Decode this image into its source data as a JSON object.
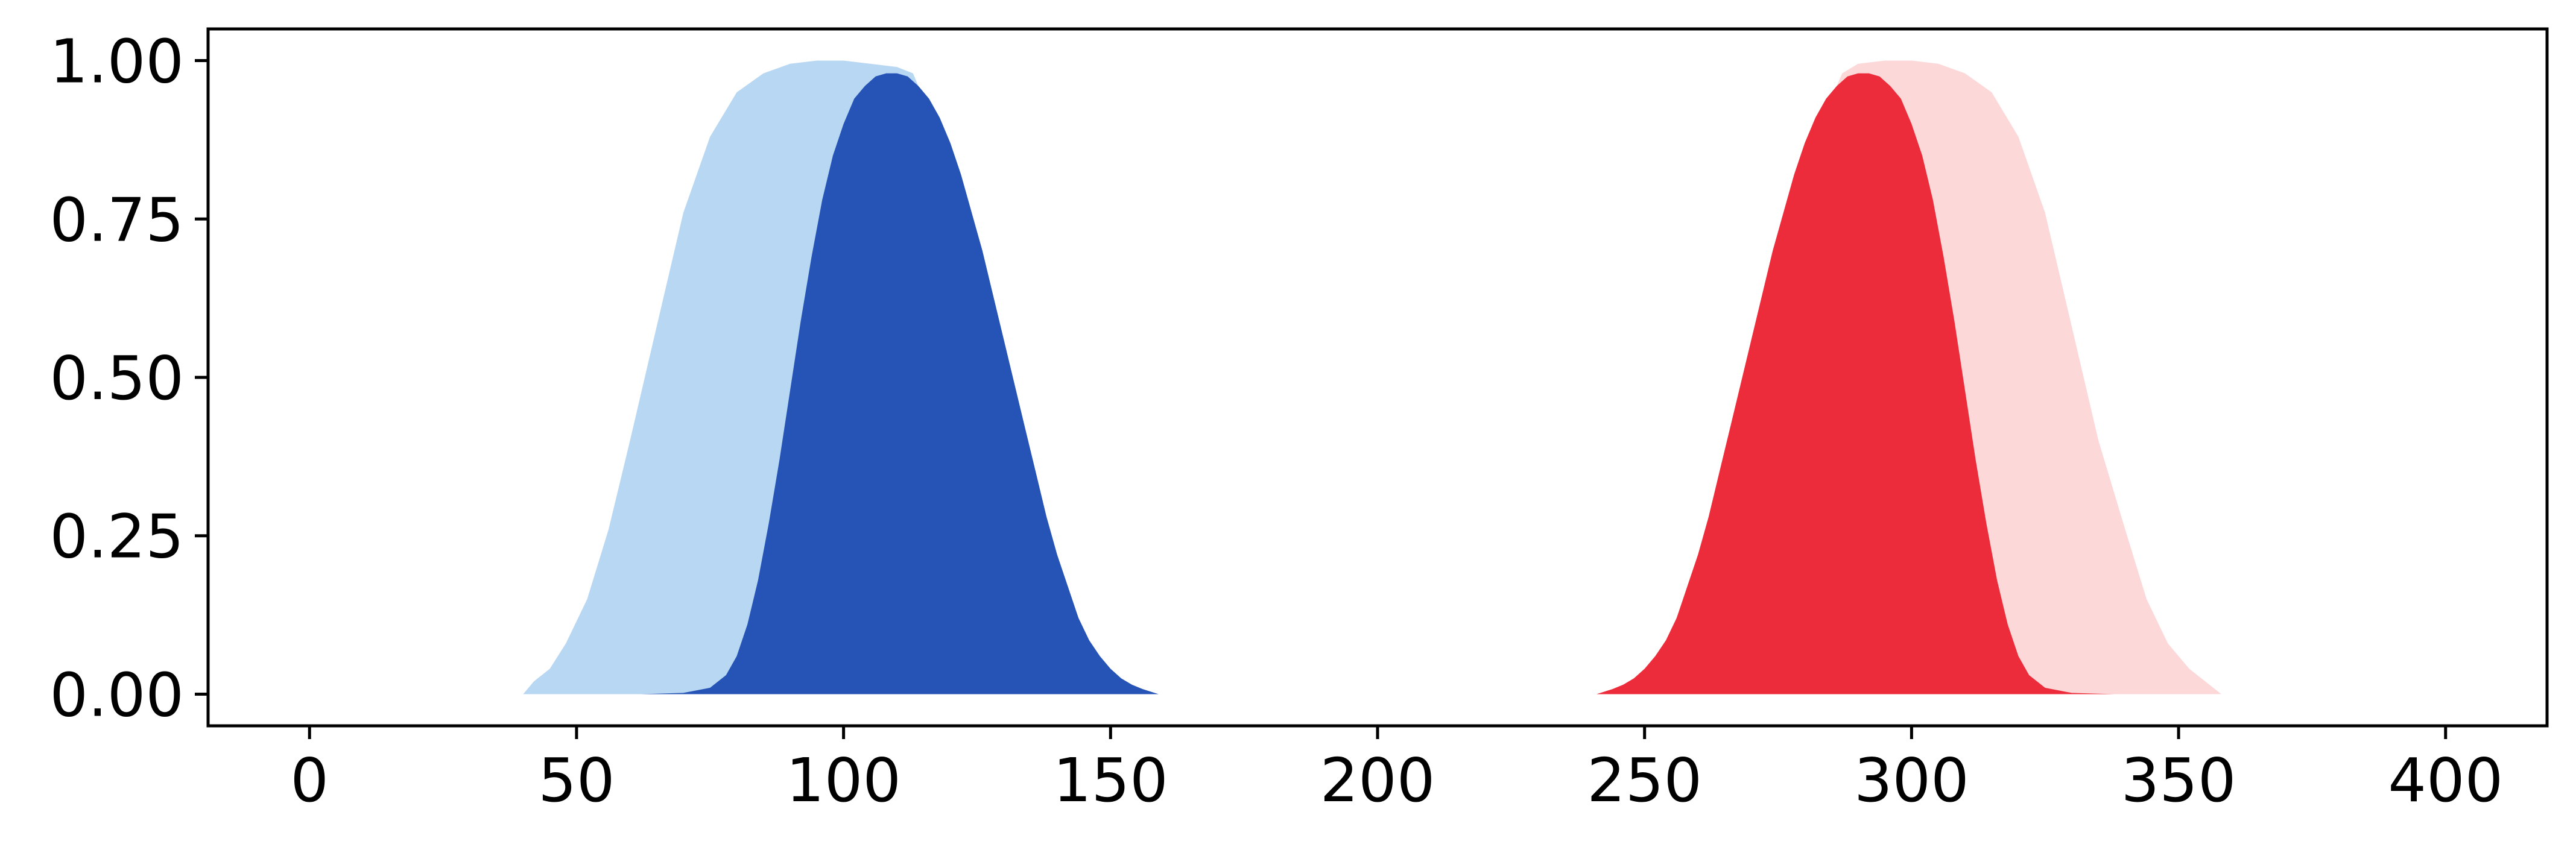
{
  "chart_data": {
    "type": "area",
    "title": "",
    "xlabel": "",
    "ylabel": "",
    "xlim": [
      -19,
      419
    ],
    "ylim": [
      -0.05,
      1.05
    ],
    "x_ticks": [
      0,
      50,
      100,
      150,
      200,
      250,
      300,
      350,
      400
    ],
    "x_tick_labels": [
      "0",
      "50",
      "100",
      "150",
      "200",
      "250",
      "300",
      "350",
      "400"
    ],
    "y_ticks": [
      0.0,
      0.25,
      0.5,
      0.75,
      1.0
    ],
    "y_tick_labels": [
      "0.00",
      "0.25",
      "0.50",
      "0.75",
      "1.00"
    ],
    "grid": false,
    "legend": "none",
    "series": [
      {
        "color": "#b8d7f2",
        "x": [
          40,
          42,
          45,
          48,
          52,
          56,
          60,
          65,
          70,
          75,
          80,
          85,
          90,
          95,
          100,
          105,
          110,
          113,
          116,
          118
        ],
        "y": [
          0.0,
          0.02,
          0.04,
          0.08,
          0.15,
          0.26,
          0.4,
          0.58,
          0.76,
          0.88,
          0.95,
          0.98,
          0.995,
          1.0,
          1.0,
          0.995,
          0.99,
          0.98,
          0.92,
          0.5
        ]
      },
      {
        "color": "#2653b6",
        "x": [
          62,
          70,
          75,
          78,
          80,
          82,
          84,
          86,
          88,
          90,
          92,
          94,
          96,
          98,
          100,
          102,
          104,
          106,
          108,
          110,
          112,
          114,
          116,
          118,
          120,
          122,
          124,
          126,
          128,
          130,
          132,
          134,
          136,
          138,
          140,
          142,
          144,
          146,
          148,
          150,
          152,
          154,
          156,
          159
        ],
        "y": [
          0.0,
          0.002,
          0.01,
          0.03,
          0.06,
          0.11,
          0.18,
          0.27,
          0.37,
          0.48,
          0.59,
          0.69,
          0.78,
          0.85,
          0.9,
          0.94,
          0.96,
          0.975,
          0.98,
          0.98,
          0.975,
          0.96,
          0.94,
          0.91,
          0.87,
          0.82,
          0.76,
          0.7,
          0.63,
          0.56,
          0.49,
          0.42,
          0.35,
          0.28,
          0.22,
          0.17,
          0.12,
          0.085,
          0.06,
          0.04,
          0.025,
          0.015,
          0.008,
          0.0
        ]
      },
      {
        "color": "#fdd8d8",
        "x": [
          282,
          284,
          287,
          290,
          295,
          300,
          305,
          310,
          315,
          320,
          325,
          330,
          335,
          340,
          344,
          348,
          352,
          355,
          358
        ],
        "y": [
          0.5,
          0.92,
          0.98,
          0.995,
          1.0,
          1.0,
          0.995,
          0.98,
          0.95,
          0.88,
          0.76,
          0.58,
          0.4,
          0.26,
          0.15,
          0.08,
          0.04,
          0.02,
          0.0
        ]
      },
      {
        "color": "#ec2c3a",
        "x": [
          241,
          244,
          246,
          248,
          250,
          252,
          254,
          256,
          258,
          260,
          262,
          264,
          266,
          268,
          270,
          272,
          274,
          276,
          278,
          280,
          282,
          284,
          286,
          288,
          290,
          292,
          294,
          296,
          298,
          300,
          302,
          304,
          306,
          308,
          310,
          312,
          314,
          316,
          318,
          320,
          322,
          325,
          330,
          338
        ],
        "y": [
          0.0,
          0.008,
          0.015,
          0.025,
          0.04,
          0.06,
          0.085,
          0.12,
          0.17,
          0.22,
          0.28,
          0.35,
          0.42,
          0.49,
          0.56,
          0.63,
          0.7,
          0.76,
          0.82,
          0.87,
          0.91,
          0.94,
          0.96,
          0.975,
          0.98,
          0.98,
          0.975,
          0.96,
          0.94,
          0.9,
          0.85,
          0.78,
          0.69,
          0.59,
          0.48,
          0.37,
          0.27,
          0.18,
          0.11,
          0.06,
          0.03,
          0.01,
          0.002,
          0.0
        ]
      }
    ]
  }
}
